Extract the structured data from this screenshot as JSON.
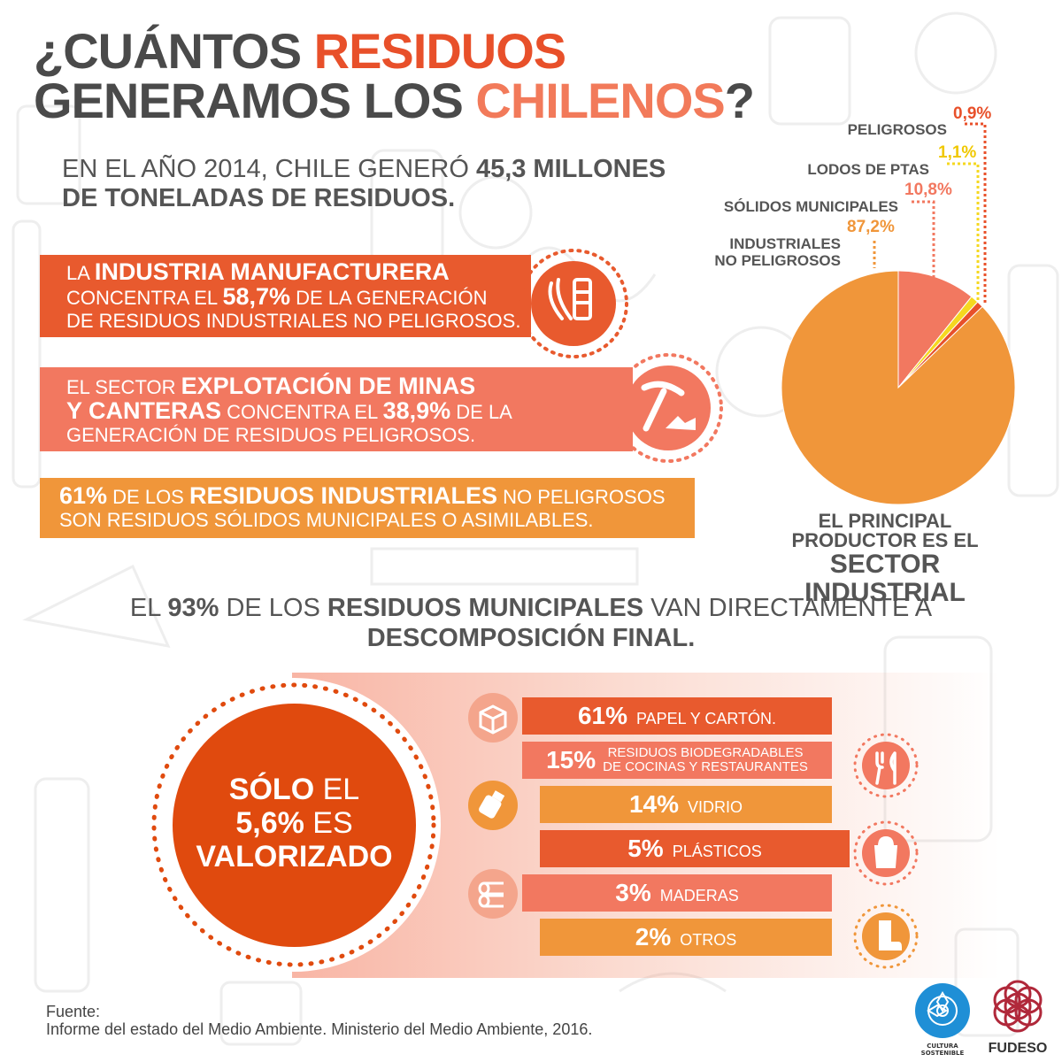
{
  "title": {
    "line1_a": "¿CUÁNTOS ",
    "line1_b": "RESIDUOS",
    "line2_a": "GENERAMOS LOS ",
    "line2_b": "CHILENOS",
    "line2_c": "?"
  },
  "intro": {
    "a": "EN EL AÑO 2014, CHILE GENERÓ ",
    "b": "45,3 MILLONES",
    "c": "DE TONELADAS DE RESIDUOS."
  },
  "banner1": {
    "a": "LA ",
    "b": "INDUSTRIA MANUFACTURERA",
    "c": "CONCENTRA EL ",
    "d": "58,7%",
    "e": " DE LA GENERACIÓN",
    "f": "DE RESIDUOS INDUSTRIALES NO PELIGROSOS."
  },
  "banner2": {
    "a": "EL SECTOR ",
    "b": "EXPLOTACIÓN  DE MINAS",
    "c": "Y CANTERAS",
    "d": " CONCENTRA EL ",
    "e": "38,9%",
    "f": " DE LA",
    "g": "GENERACIÓN DE RESIDUOS PELIGROSOS."
  },
  "banner3": {
    "a": "61%",
    "b": " DE LOS ",
    "c": "RESIDUOS INDUSTRIALES",
    "d": " NO PELIGROSOS",
    "e": "SON RESIDUOS SÓLIDOS MUNICIPALES O ASIMILABLES."
  },
  "producer": {
    "l1": "EL  PRINCIPAL",
    "l2": "PRODUCTOR ES EL",
    "l3": "SECTOR INDUSTRIAL"
  },
  "municipal": {
    "a": "EL ",
    "b": "93%",
    "c": " DE LOS ",
    "d": "RESIDUOS MUNICIPALES",
    "e": " VAN DIRECTAMENTE A",
    "f": "DESCOMPOSICIÓN FINAL."
  },
  "circle": {
    "l1a": "SÓLO",
    "l1b": " EL",
    "l2a": "5,6%",
    "l2b": " ES",
    "l3": "VALORIZADO"
  },
  "source": {
    "l1": "Fuente:",
    "l2": "Informe del estado del Medio Ambiente. Ministerio del Medio Ambiente, 2016."
  },
  "logos": {
    "left_l1": "CULTURA",
    "left_l2": "SOSTENIBLE",
    "right": "FUDESO"
  },
  "colors": {
    "industriales": "#f0963a",
    "solidos": "#f27860",
    "lodos": "#f5d820",
    "peligrosos": "#e8502a",
    "circle": "#e04a0e"
  },
  "chart_data": [
    {
      "type": "pie",
      "slices": [
        {
          "label": "INDUSTRIALES NO PELIGROSOS",
          "value": 87.2,
          "display": "87,2%"
        },
        {
          "label": "SÓLIDOS MUNICIPALES",
          "value": 10.8,
          "display": "10,8%"
        },
        {
          "label": "LODOS DE PTAS",
          "value": 1.1,
          "display": "1,1%"
        },
        {
          "label": "PELIGROSOS",
          "value": 0.9,
          "display": "0,9%"
        }
      ]
    },
    {
      "type": "bar",
      "categories": [
        "PAPEL Y CARTÓN.",
        "RESIDUOS BIODEGRADABLES DE COCINAS Y RESTAURANTES",
        "VIDRIO",
        "PLÁSTICOS",
        "MADERAS",
        "OTROS"
      ],
      "values": [
        61,
        15,
        14,
        5,
        3,
        2
      ],
      "display": [
        "61%",
        "15%",
        "14%",
        "5%",
        "3%",
        "2%"
      ],
      "category_lines": [
        [
          "PAPEL Y CARTÓN."
        ],
        [
          "RESIDUOS BIODEGRADABLES",
          "DE COCINAS Y RESTAURANTES"
        ],
        [
          "VIDRIO"
        ],
        [
          "PLÁSTICOS"
        ],
        [
          "MADERAS"
        ],
        [
          "OTROS"
        ]
      ]
    }
  ]
}
